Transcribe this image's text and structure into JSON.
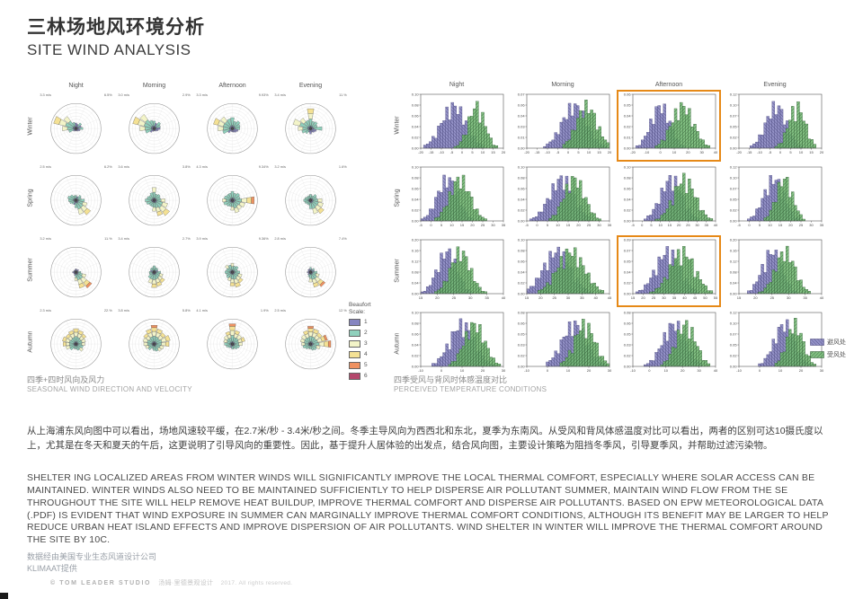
{
  "slide": {
    "title_zh": "三林场地风环境分析",
    "title_en": "SITE WIND ANALYSIS"
  },
  "left_caption": {
    "zh": "四季+四时风向及风力",
    "en": "SEASONAL WIND DIRECTION AND VELOCITY"
  },
  "right_caption": {
    "zh": "四季受风与背风时体感温度对比",
    "en": "PERCEIVED TEMPERATURE CONDITIONS"
  },
  "body": {
    "zh": "从上海浦东风向图中可以看出，场地风速较平缓，在2.7米/秒 - 3.4米/秒之间。冬季主导风向为西西北和东北，夏季为东南风。从受风和背风体感温度对比可以看出，两者的区别可达10摄氏度以上，尤其是在冬天和夏天的午后，这更说明了引导风向的重要性。因此，基于提升人居体验的出发点，结合风向图，主要设计策略为阻挡冬季风，引导夏季风，并帮助过滤污染物。",
    "en": "SHELTER ING LOCALIZED AREAS FROM WINTER WINDS WILL SIGNIFICANTLY IMPROVE THE LOCAL THERMAL COMFORT, ESPECIALLY WHERE SOLAR ACCESS CAN BE MAINTAINED. WINTER WINDS ALSO NEED TO BE MAINTAINED SUFFICIENTLY TO HELP DISPERSE AIR POLLUTANT SUMMER, MAINTAIN WIND FLOW FROM THE SE THROUGHOUT THE SITE WILL HELP REMOVE HEAT BUILDUP, IMPROVE THERMAL COMFORT AND DISPERSE AIR POLLUTANTS. BASED ON EPW METEOROLOGICAL DATA (.PDF) IS EVIDENT THAT WIND EXPOSURE IN SUMMER CAN MARGINALLY IMPROVE THERMAL COMFORT CONDITIONS, ALTHOUGH ITS BENEFIT MAY BE LARGER TO HELP REDUCE URBAN HEAT ISLAND EFFECTS AND IMPROVE DISPERSION OF AIR POLLUTANTS. WIND SHELTER IN WINTER WILL IMPROVE THE THERMAL COMFORT AROUND THE SITE BY 10C."
  },
  "footer": {
    "credit_zh": "数据经由美国专业生态风道设计公司KLIMAAT提供",
    "studio": "© TOM LEADER STUDIO",
    "studio_zh": "汤姆·里德景观设计",
    "rights": "2017. All rights reserved."
  },
  "chart_data": [
    {
      "type": "windrose-grid",
      "title": "SEASONAL WIND DIRECTION AND VELOCITY",
      "columns": [
        "Night",
        "Morning",
        "Afternoon",
        "Evening"
      ],
      "rows": [
        "Winter",
        "Spring",
        "Summer",
        "Autumn"
      ],
      "direction_order": [
        "N",
        "NNE",
        "NE",
        "ENE",
        "E",
        "ESE",
        "SE",
        "SSE",
        "S",
        "SSW",
        "SW",
        "WSW",
        "W",
        "WNW",
        "NW",
        "NNW"
      ],
      "beaufort_legend": {
        "title_line1": "Beaufort",
        "title_line2": "Scale:",
        "labels": [
          "1",
          "2",
          "3",
          "4",
          "5",
          "6"
        ],
        "colors": [
          "#8584c0",
          "#8fd0bc",
          "#f3f4c8",
          "#f4e194",
          "#ef9160",
          "#b4476b"
        ]
      },
      "row_max_beaufort": [
        4,
        5,
        6,
        6
      ],
      "cells": [
        [
          {
            "speed": "3.3 m/s",
            "freq": "6.5%",
            "petals": [
              0.22,
              0.18,
              0.28,
              0.22,
              0.28,
              0.18,
              0.14,
              0.1,
              0.1,
              0.1,
              0.14,
              0.3,
              0.55,
              0.92,
              0.6,
              0.26
            ]
          },
          {
            "speed": "3.0 m/s",
            "freq": "2.9%",
            "petals": [
              0.3,
              0.22,
              0.32,
              0.26,
              0.24,
              0.18,
              0.14,
              0.1,
              0.1,
              0.12,
              0.2,
              0.36,
              0.58,
              0.88,
              0.7,
              0.34
            ]
          },
          {
            "speed": "3.3 m/s",
            "freq": "9.93%",
            "petals": [
              0.44,
              0.3,
              0.38,
              0.32,
              0.3,
              0.24,
              0.2,
              0.16,
              0.14,
              0.12,
              0.22,
              0.4,
              0.58,
              0.78,
              0.58,
              0.4
            ]
          },
          {
            "speed": "3.4 m/s",
            "freq": "11.%",
            "petals": [
              0.8,
              0.3,
              0.34,
              0.28,
              0.46,
              0.24,
              0.2,
              0.16,
              0.22,
              0.16,
              0.26,
              0.36,
              0.5,
              0.72,
              0.52,
              0.34
            ]
          }
        ],
        [
          {
            "speed": "2.5 m/s",
            "freq": "6.2%",
            "petals": [
              0.2,
              0.16,
              0.26,
              0.22,
              0.34,
              0.46,
              0.72,
              0.58,
              0.3,
              0.18,
              0.2,
              0.26,
              0.3,
              0.34,
              0.28,
              0.2
            ]
          },
          {
            "speed": "3.6 m/s",
            "freq": "3.8%",
            "petals": [
              0.52,
              0.26,
              0.3,
              0.26,
              0.44,
              0.56,
              0.76,
              0.64,
              0.44,
              0.26,
              0.26,
              0.32,
              0.36,
              0.3,
              0.26,
              0.32
            ]
          },
          {
            "speed": "4.3 m/s",
            "freq": "9.34%",
            "petals": [
              0.36,
              0.3,
              0.36,
              0.32,
              0.88,
              0.52,
              0.46,
              0.52,
              0.4,
              0.26,
              0.3,
              0.36,
              0.4,
              0.34,
              0.3,
              0.3
            ]
          },
          {
            "speed": "3.2 m/s",
            "freq": "1.6%",
            "petals": [
              0.24,
              0.2,
              0.3,
              0.26,
              0.46,
              0.52,
              0.66,
              0.56,
              0.34,
              0.2,
              0.2,
              0.24,
              0.28,
              0.24,
              0.2,
              0.2
            ]
          }
        ],
        [
          {
            "speed": "3.2 m/s",
            "freq": "11.%",
            "petals": [
              0.14,
              0.1,
              0.14,
              0.1,
              0.2,
              0.42,
              0.78,
              0.66,
              0.34,
              0.14,
              0.1,
              0.1,
              0.14,
              0.1,
              0.1,
              0.1
            ]
          },
          {
            "speed": "3.4 m/s",
            "freq": "2.7%",
            "petals": [
              0.26,
              0.2,
              0.2,
              0.16,
              0.26,
              0.36,
              0.52,
              0.58,
              0.62,
              0.46,
              0.3,
              0.2,
              0.2,
              0.16,
              0.2,
              0.2
            ]
          },
          {
            "speed": "3.9 m/s",
            "freq": "9.36%",
            "petals": [
              0.36,
              0.26,
              0.3,
              0.22,
              0.3,
              0.4,
              0.52,
              0.62,
              0.56,
              0.36,
              0.3,
              0.26,
              0.3,
              0.26,
              0.36,
              0.3
            ]
          },
          {
            "speed": "2.8 m/s",
            "freq": "7.4%",
            "petals": [
              0.2,
              0.14,
              0.2,
              0.16,
              0.26,
              0.36,
              0.72,
              0.62,
              0.4,
              0.2,
              0.14,
              0.1,
              0.14,
              0.1,
              0.14,
              0.14
            ]
          }
        ],
        [
          {
            "speed": "2.3 m/s",
            "freq": "22.%",
            "petals": [
              0.62,
              0.56,
              0.5,
              0.4,
              0.36,
              0.3,
              0.36,
              0.26,
              0.2,
              0.2,
              0.3,
              0.42,
              0.52,
              0.56,
              0.5,
              0.56
            ]
          },
          {
            "speed": "3.8 m/s",
            "freq": "5.8%",
            "petals": [
              0.76,
              0.62,
              0.56,
              0.66,
              0.6,
              0.4,
              0.36,
              0.3,
              0.26,
              0.2,
              0.3,
              0.36,
              0.42,
              0.46,
              0.52,
              0.62
            ]
          },
          {
            "speed": "4.1 m/s",
            "freq": "1.9%",
            "petals": [
              0.82,
              0.56,
              0.46,
              0.52,
              0.4,
              0.3,
              0.26,
              0.2,
              0.2,
              0.16,
              0.2,
              0.26,
              0.32,
              0.36,
              0.42,
              0.52
            ]
          },
          {
            "speed": "2.5 m/s",
            "freq": "12.%",
            "petals": [
              0.72,
              0.62,
              0.56,
              0.7,
              0.82,
              0.4,
              0.3,
              0.26,
              0.2,
              0.2,
              0.26,
              0.32,
              0.36,
              0.42,
              0.46,
              0.56
            ]
          }
        ]
      ]
    },
    {
      "type": "histogram-grid",
      "title": "PERCEIVED TEMPERATURE CONDITIONS",
      "columns": [
        "Night",
        "Morning",
        "Afternoon",
        "Evening"
      ],
      "rows": [
        "Winter",
        "Spring",
        "Summer",
        "Autumn"
      ],
      "xlabel_unit": "degC",
      "series": [
        {
          "name": "避风处",
          "color": "#8583bf",
          "edge": "#3f3d73"
        },
        {
          "name": "受风处",
          "color": "#72b872",
          "edge": "#27512a"
        }
      ],
      "highlighted_cells": [
        [
          0,
          2
        ],
        [
          2,
          2
        ]
      ],
      "cells": [
        [
          {
            "xmin": -20,
            "xmax": 20,
            "xstep": 5,
            "ymax": 0.1,
            "p": [
              -4,
              6
            ],
            "g": [
              7,
              4
            ]
          },
          {
            "xmin": -20,
            "xmax": 20,
            "xstep": 5,
            "ymax": 0.07,
            "p": [
              3,
              6
            ],
            "g": [
              9,
              5
            ]
          },
          {
            "xmin": -20,
            "xmax": 40,
            "xstep": 10,
            "ymax": 0.06,
            "p": [
              0,
              7
            ],
            "g": [
              16,
              8
            ]
          },
          {
            "xmin": -20,
            "xmax": 20,
            "xstep": 5,
            "ymax": 0.12,
            "p": [
              -2,
              5
            ],
            "g": [
              8,
              4
            ]
          }
        ],
        [
          {
            "xmin": -5,
            "xmax": 35,
            "xstep": 5,
            "ymax": 0.1,
            "p": [
              8,
              5
            ],
            "g": [
              14,
              5
            ]
          },
          {
            "xmin": -5,
            "xmax": 35,
            "xstep": 5,
            "ymax": 0.1,
            "p": [
              12,
              6
            ],
            "g": [
              18,
              5
            ]
          },
          {
            "xmin": -5,
            "xmax": 40,
            "xstep": 5,
            "ymax": 0.1,
            "p": [
              16,
              6
            ],
            "g": [
              23,
              6
            ]
          },
          {
            "xmin": -5,
            "xmax": 35,
            "xstep": 5,
            "ymax": 0.12,
            "p": [
              12,
              5
            ],
            "g": [
              17,
              4
            ]
          }
        ],
        [
          {
            "xmin": 15,
            "xmax": 40,
            "xstep": 5,
            "ymax": 0.2,
            "p": [
              23,
              3
            ],
            "g": [
              27,
              3
            ]
          },
          {
            "xmin": 15,
            "xmax": 45,
            "xstep": 5,
            "ymax": 0.1,
            "p": [
              26,
              5
            ],
            "g": [
              31,
              5
            ]
          },
          {
            "xmin": 15,
            "xmax": 55,
            "xstep": 5,
            "ymax": 0.09,
            "p": [
              32,
              6
            ],
            "g": [
              39,
              6
            ]
          },
          {
            "xmin": 15,
            "xmax": 40,
            "xstep": 5,
            "ymax": 0.2,
            "p": [
              25,
              3
            ],
            "g": [
              29,
              3
            ]
          }
        ],
        [
          {
            "xmin": -10,
            "xmax": 30,
            "xstep": 10,
            "ymax": 0.1,
            "p": [
              10,
              6
            ],
            "g": [
              16,
              5
            ]
          },
          {
            "xmin": -10,
            "xmax": 30,
            "xstep": 10,
            "ymax": 0.08,
            "p": [
              13,
              6
            ],
            "g": [
              18,
              5
            ]
          },
          {
            "xmin": -10,
            "xmax": 40,
            "xstep": 10,
            "ymax": 0.08,
            "p": [
              15,
              7
            ],
            "g": [
              22,
              6
            ]
          },
          {
            "xmin": -10,
            "xmax": 30,
            "xstep": 10,
            "ymax": 0.12,
            "p": [
              12,
              5
            ],
            "g": [
              17,
              4
            ]
          }
        ]
      ],
      "highlight_color": "#e68917"
    }
  ]
}
